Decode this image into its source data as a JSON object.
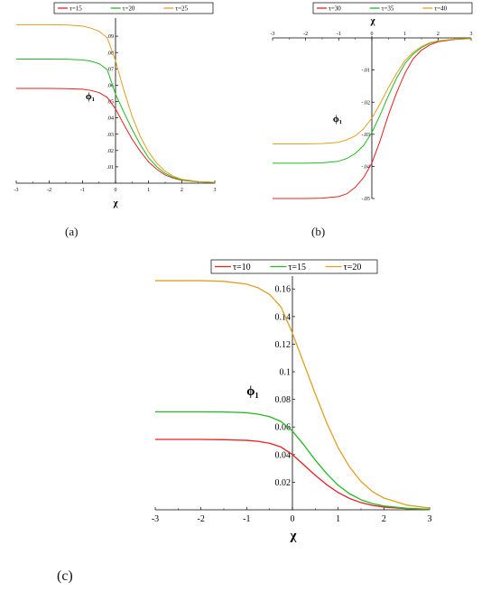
{
  "panel_labels": [
    "(a)",
    "(b)",
    "(c)"
  ],
  "chart_data": [
    {
      "type": "line",
      "panel": "(a)",
      "xlabel": "χ",
      "ylabel": "ϕ₁",
      "xlim": [
        -3,
        3
      ],
      "ylim": [
        0,
        0.1
      ],
      "xticks": [
        -3,
        -2,
        -1,
        0,
        1,
        2,
        3
      ],
      "yticks": [
        0.01,
        0.02,
        0.03,
        0.04,
        0.05,
        0.06,
        0.07,
        0.08,
        0.09
      ],
      "grid": false,
      "legend_position": "top",
      "x": [
        -3,
        -2.5,
        -2,
        -1.5,
        -1,
        -0.75,
        -0.5,
        -0.25,
        0,
        0.25,
        0.5,
        0.75,
        1,
        1.25,
        1.5,
        1.75,
        2,
        2.5,
        3
      ],
      "series": [
        {
          "name": "τ=15",
          "color": "#e8201f",
          "values": [
            0.058,
            0.058,
            0.058,
            0.0579,
            0.0575,
            0.0568,
            0.0555,
            0.0525,
            0.0455,
            0.036,
            0.027,
            0.0195,
            0.013,
            0.0085,
            0.005,
            0.003,
            0.0018,
            0.0008,
            0.0005
          ]
        },
        {
          "name": "τ=20",
          "color": "#22bb22",
          "values": [
            0.076,
            0.076,
            0.076,
            0.0759,
            0.0755,
            0.0747,
            0.0732,
            0.0695,
            0.0545,
            0.0435,
            0.033,
            0.0235,
            0.0155,
            0.01,
            0.006,
            0.0035,
            0.002,
            0.0009,
            0.0005
          ]
        },
        {
          "name": "τ=25",
          "color": "#e0a020",
          "values": [
            0.097,
            0.097,
            0.097,
            0.0969,
            0.0962,
            0.095,
            0.093,
            0.089,
            0.075,
            0.057,
            0.041,
            0.0285,
            0.019,
            0.0122,
            0.0073,
            0.0042,
            0.0024,
            0.001,
            0.0005
          ]
        }
      ]
    },
    {
      "type": "line",
      "panel": "(b)",
      "xlabel": "χ",
      "ylabel": "ϕ₁",
      "xlim": [
        -3,
        3
      ],
      "ylim": [
        -0.05,
        0
      ],
      "xticks": [
        -3,
        -2,
        -1,
        0,
        1,
        2,
        3
      ],
      "yticks": [
        -0.01,
        -0.02,
        -0.03,
        -0.04,
        -0.05
      ],
      "grid": false,
      "legend_position": "top",
      "x": [
        -3,
        -2.5,
        -2,
        -1.5,
        -1,
        -0.75,
        -0.5,
        -0.25,
        0,
        0.25,
        0.5,
        0.75,
        1,
        1.25,
        1.5,
        1.75,
        2,
        2.5,
        3
      ],
      "series": [
        {
          "name": "τ=30",
          "color": "#e8201f",
          "values": [
            -0.05,
            -0.05,
            -0.05,
            -0.0499,
            -0.0494,
            -0.0485,
            -0.0465,
            -0.0435,
            -0.039,
            -0.032,
            -0.024,
            -0.017,
            -0.011,
            -0.0065,
            -0.0038,
            -0.0022,
            -0.0012,
            -0.0005,
            -0.0002
          ]
        },
        {
          "name": "τ=35",
          "color": "#22bb22",
          "values": [
            -0.039,
            -0.039,
            -0.039,
            -0.0389,
            -0.0384,
            -0.0375,
            -0.036,
            -0.0335,
            -0.0295,
            -0.024,
            -0.018,
            -0.0125,
            -0.008,
            -0.005,
            -0.003,
            -0.0017,
            -0.001,
            -0.0004,
            -0.0002
          ]
        },
        {
          "name": "τ=40",
          "color": "#e0a020",
          "values": [
            -0.033,
            -0.033,
            -0.033,
            -0.0329,
            -0.0325,
            -0.0317,
            -0.0305,
            -0.0283,
            -0.025,
            -0.0205,
            -0.0155,
            -0.011,
            -0.0071,
            -0.0045,
            -0.0027,
            -0.0015,
            -0.0009,
            -0.0004,
            -0.0002
          ]
        }
      ]
    },
    {
      "type": "line",
      "panel": "(c)",
      "xlabel": "χ",
      "ylabel": "ϕ₁",
      "xlim": [
        -3,
        3
      ],
      "ylim": [
        0,
        0.168
      ],
      "xticks": [
        -3,
        -2,
        -1,
        0,
        1,
        2,
        3
      ],
      "yticks": [
        0.02,
        0.04,
        0.06,
        0.08,
        0.1,
        0.12,
        0.14,
        0.16
      ],
      "grid": false,
      "legend_position": "top",
      "x": [
        -3,
        -2.5,
        -2,
        -1.5,
        -1,
        -0.75,
        -0.5,
        -0.25,
        0,
        0.25,
        0.5,
        0.75,
        1,
        1.25,
        1.5,
        1.75,
        2,
        2.5,
        3
      ],
      "series": [
        {
          "name": "τ=10",
          "color": "#e8201f",
          "values": [
            0.051,
            0.051,
            0.051,
            0.0508,
            0.0503,
            0.0496,
            0.0482,
            0.0455,
            0.04,
            0.0325,
            0.025,
            0.0182,
            0.0125,
            0.0082,
            0.0052,
            0.0032,
            0.002,
            0.0008,
            0.0003
          ]
        },
        {
          "name": "τ=15",
          "color": "#22bb22",
          "values": [
            0.071,
            0.071,
            0.071,
            0.0709,
            0.0703,
            0.0693,
            0.0675,
            0.064,
            0.057,
            0.047,
            0.036,
            0.0262,
            0.0178,
            0.0116,
            0.0073,
            0.0045,
            0.0028,
            0.0011,
            0.0004
          ]
        },
        {
          "name": "τ=20",
          "color": "#e0a020",
          "values": [
            0.166,
            0.166,
            0.166,
            0.1655,
            0.1635,
            0.1608,
            0.156,
            0.147,
            0.128,
            0.106,
            0.084,
            0.063,
            0.045,
            0.031,
            0.0205,
            0.0132,
            0.0085,
            0.0034,
            0.0013
          ]
        }
      ]
    }
  ]
}
